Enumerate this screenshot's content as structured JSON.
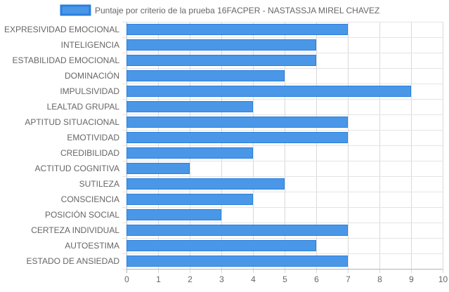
{
  "chart_data": {
    "type": "bar",
    "orientation": "horizontal",
    "categories": [
      "EXPRESIVIDAD EMOCIONAL",
      "INTELIGENCIA",
      "ESTABILIDAD EMOCIONAL",
      "DOMINACIÓN",
      "IMPULSIVIDAD",
      "LEALTAD GRUPAL",
      "APTITUD SITUACIONAL",
      "EMOTIVIDAD",
      "CREDIBILIDAD",
      "ACTITUD COGNITIVA",
      "SUTILEZA",
      "CONSCIENCIA",
      "POSICIÓN SOCIAL",
      "CERTEZA INDIVIDUAL",
      "AUTOESTIMA",
      "ESTADO DE ANSIEDAD"
    ],
    "series": [
      {
        "name": "Puntaje por criterio de la prueba 16FACPER - NASTASSJA MIREL CHAVEZ",
        "values": [
          7,
          6,
          6,
          5,
          9,
          4,
          7,
          7,
          4,
          2,
          5,
          4,
          3,
          7,
          6,
          7
        ],
        "color": "#4a97e8",
        "border_color": "#2a7fe0"
      }
    ],
    "xlim": [
      0,
      10
    ],
    "x_ticks": [
      "0",
      "1",
      "2",
      "3",
      "4",
      "5",
      "6",
      "7",
      "8",
      "9",
      "10"
    ],
    "grid": true,
    "legend_position": "top-center",
    "title": "",
    "xlabel": "",
    "ylabel": ""
  }
}
